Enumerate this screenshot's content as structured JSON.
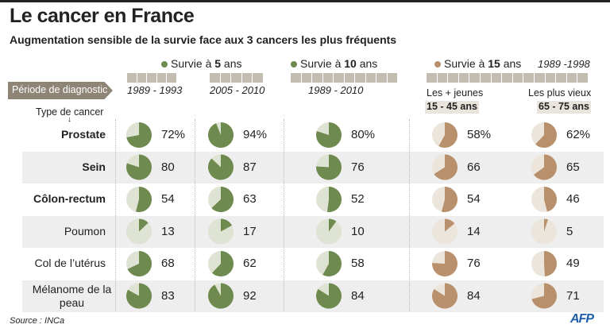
{
  "title": "Le cancer en France",
  "subtitle": "Augmentation sensible de la survie face aux 3 cancers les plus fréquents",
  "legend": [
    {
      "pre": "Survie à ",
      "bold": "5",
      "post": " ans",
      "color": "#6e8a4f"
    },
    {
      "pre": "Survie à ",
      "bold": "10",
      "post": " ans",
      "color": "#6e8a4f"
    },
    {
      "pre": "Survie à ",
      "bold": "15",
      "post": " ans",
      "color": "#b8906b"
    }
  ],
  "period_15": "1989 -1998",
  "periode_label": "Période de diagnostic",
  "type_label": "Type de cancer",
  "arrow": "↓",
  "periods": [
    "1989 - 1993",
    "2005 - 2010",
    "1989 - 2010"
  ],
  "age_groups": [
    {
      "label": "Les + jeunes",
      "range": "15 - 45 ans"
    },
    {
      "label": "Les plus vieux",
      "range": "65 - 75 ans"
    }
  ],
  "source": "Source : INCa",
  "logo": "AFP",
  "chart_data": {
    "type": "pie",
    "unit": "%",
    "columns": [
      "Survie à 5 ans 1989 - 1993",
      "Survie à 5 ans 2005 - 2010",
      "Survie à 10 ans 1989 - 2010",
      "Survie à 15 ans 1989-1998 15 - 45 ans",
      "Survie à 15 ans 1989-1998 65 - 75 ans"
    ],
    "colors": {
      "green": "#6e8a4f",
      "green_bg": "#dfe3d3",
      "tan": "#b8906b",
      "tan_bg": "#ebe5dc"
    },
    "rows": [
      {
        "name": "Prostate",
        "bold": true,
        "values": [
          72,
          94,
          80,
          58,
          62
        ],
        "labels": [
          "72%",
          "94%",
          "80%",
          "58%",
          "62%"
        ]
      },
      {
        "name": "Sein",
        "bold": true,
        "values": [
          80,
          87,
          76,
          66,
          65
        ],
        "labels": [
          "80",
          "87",
          "76",
          "66",
          "65"
        ]
      },
      {
        "name": "Côlon-rectum",
        "bold": true,
        "values": [
          54,
          63,
          52,
          54,
          46
        ],
        "labels": [
          "54",
          "63",
          "52",
          "54",
          "46"
        ]
      },
      {
        "name": "Poumon",
        "bold": false,
        "values": [
          13,
          17,
          10,
          14,
          5
        ],
        "labels": [
          "13",
          "17",
          "10",
          "14",
          "5"
        ]
      },
      {
        "name": "Col de l’utérus",
        "bold": false,
        "values": [
          68,
          62,
          58,
          76,
          49
        ],
        "labels": [
          "68",
          "62",
          "58",
          "76",
          "49"
        ]
      },
      {
        "name": "Mélanome de la peau",
        "bold": false,
        "values": [
          83,
          92,
          84,
          84,
          71
        ],
        "labels": [
          "83",
          "92",
          "84",
          "84",
          "71"
        ]
      }
    ]
  }
}
